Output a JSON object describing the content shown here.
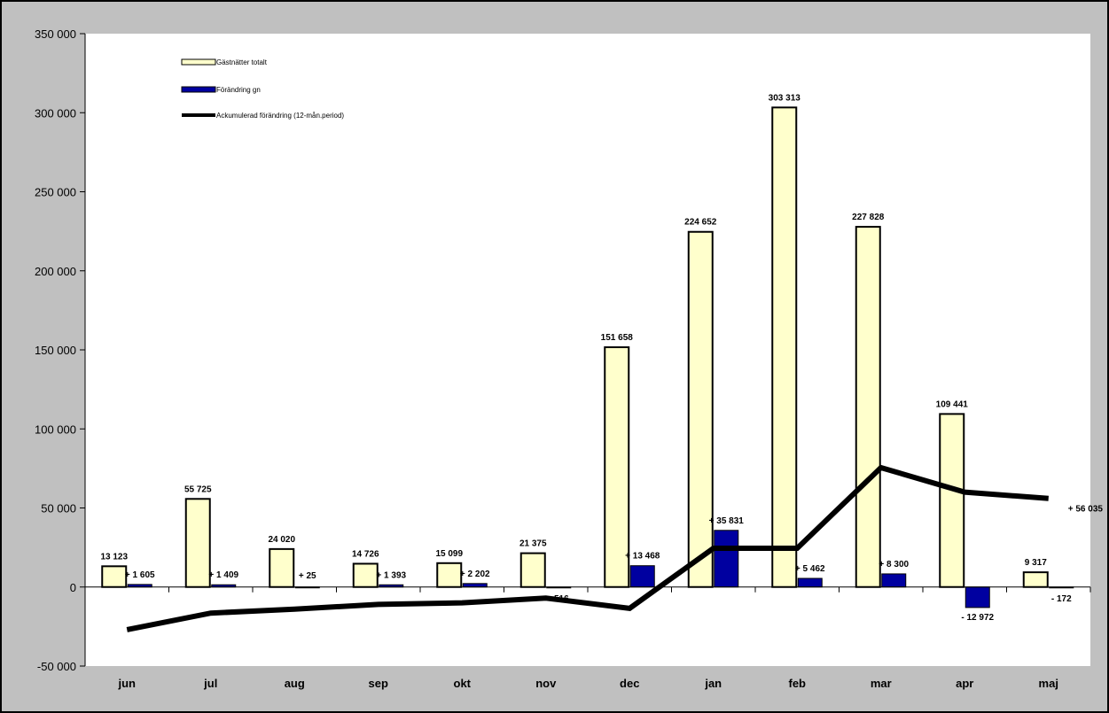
{
  "chart_data": {
    "type": "bar",
    "categories": [
      "jun",
      "jul",
      "aug",
      "sep",
      "okt",
      "nov",
      "dec",
      "jan",
      "feb",
      "mar",
      "apr",
      "maj"
    ],
    "ylim": [
      -50000,
      350000
    ],
    "yticks": [
      -50000,
      0,
      50000,
      100000,
      150000,
      200000,
      250000,
      300000,
      350000
    ],
    "ytick_labels": [
      "-50 000",
      "0",
      "50 000",
      "100 000",
      "150 000",
      "200 000",
      "250 000",
      "300 000",
      "350 000"
    ],
    "grid": false,
    "legend_position": "top-left",
    "series": [
      {
        "name": "Gästnätter totalt",
        "kind": "bar",
        "color": "#ffffcc",
        "values": [
          13123,
          55725,
          24020,
          14726,
          15099,
          21375,
          151658,
          224652,
          303313,
          227828,
          109441,
          9317
        ],
        "labels": [
          "13 123",
          "55 725",
          "24 020",
          "14 726",
          "15 099",
          "21 375",
          "151 658",
          "224 652",
          "303 313",
          "227 828",
          "109 441",
          "9 317"
        ]
      },
      {
        "name": "Förändring gn",
        "kind": "bar",
        "color": "#0000a0",
        "values": [
          1605,
          1409,
          25,
          1393,
          2202,
          -516,
          13468,
          35831,
          5462,
          8300,
          -12972,
          -172
        ],
        "labels": [
          "+ 1 605",
          "+ 1 409",
          "+ 25",
          "+ 1 393",
          "+ 2 202",
          "- 516",
          "+ 13 468",
          "+ 35 831",
          "+ 5 462",
          "+ 8 300",
          "- 12 972",
          "- 172"
        ]
      },
      {
        "name": "Ackumulerad förändring (12-mån.period)",
        "kind": "line",
        "color": "#000000",
        "values": [
          -27000,
          -16500,
          -14000,
          -11000,
          -10000,
          -7000,
          -13500,
          24500,
          24500,
          75500,
          60000,
          56035
        ],
        "end_label": "+ 56 035"
      }
    ]
  }
}
